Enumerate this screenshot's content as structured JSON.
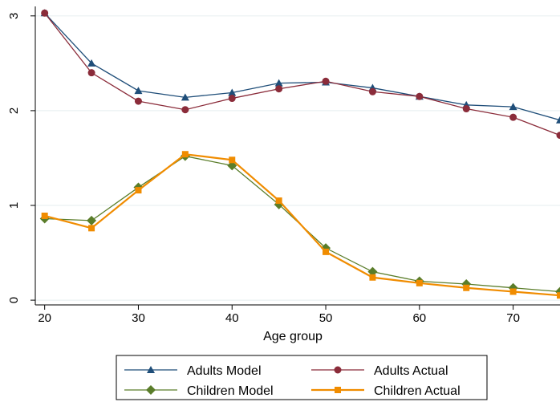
{
  "chart_data": {
    "type": "line",
    "title": "",
    "xlabel": "Age group",
    "ylabel": "",
    "x": [
      20,
      25,
      30,
      35,
      40,
      45,
      50,
      55,
      60,
      65,
      70,
      75
    ],
    "xlim": [
      19,
      75
    ],
    "ylim": [
      -0.05,
      3.1
    ],
    "xticks": [
      20,
      30,
      40,
      50,
      60,
      70
    ],
    "yticks": [
      0,
      1,
      2,
      3
    ],
    "grid": true,
    "legend_position": "bottom",
    "series": [
      {
        "name": "Adults Model",
        "color": "#1f4e79",
        "marker": "triangle",
        "values": [
          3.03,
          2.5,
          2.21,
          2.14,
          2.19,
          2.29,
          2.3,
          2.24,
          2.15,
          2.06,
          2.04,
          1.9
        ]
      },
      {
        "name": "Adults Actual",
        "color": "#8b2c3a",
        "marker": "circle",
        "values": [
          3.03,
          2.4,
          2.1,
          2.01,
          2.13,
          2.23,
          2.31,
          2.2,
          2.15,
          2.02,
          1.93,
          1.74
        ]
      },
      {
        "name": "Children Model",
        "color": "#5a7d2a",
        "marker": "diamond",
        "values": [
          0.86,
          0.84,
          1.19,
          1.52,
          1.42,
          1.01,
          0.55,
          0.3,
          0.2,
          0.17,
          0.13,
          0.09
        ]
      },
      {
        "name": "Children Actual",
        "color": "#f08c00",
        "marker": "square",
        "values": [
          0.89,
          0.76,
          1.16,
          1.54,
          1.48,
          1.05,
          0.51,
          0.24,
          0.18,
          0.13,
          0.09,
          0.05
        ]
      }
    ]
  }
}
